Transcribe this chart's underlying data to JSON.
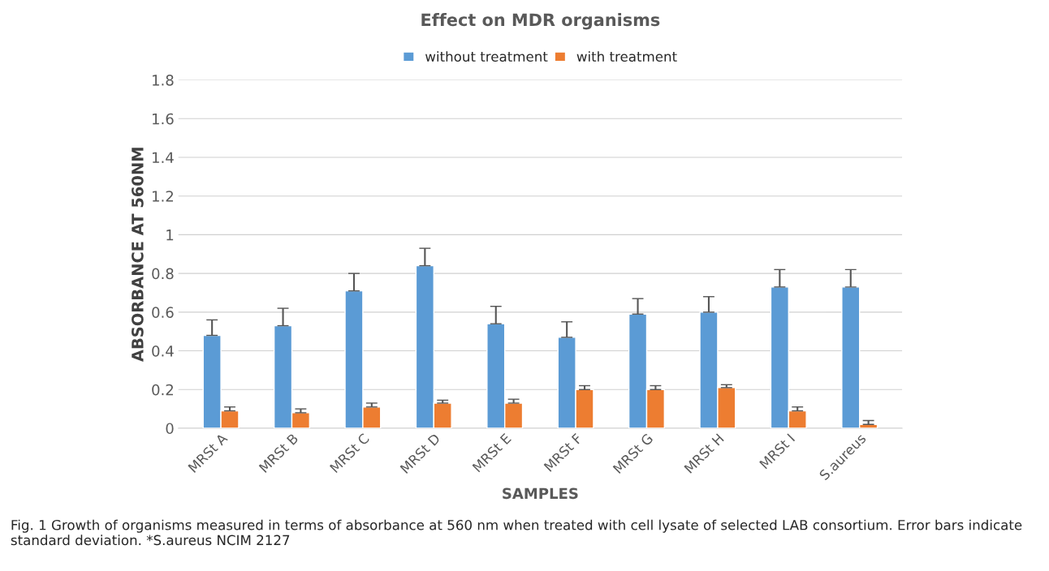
{
  "chart_data": {
    "type": "bar",
    "title": "Effect on MDR organisms",
    "xlabel": "SAMPLES",
    "ylabel": "ABSORBANCE AT 560NM",
    "categories": [
      "MRSt A",
      "MRSt B",
      "MRSt C",
      "MRSt D",
      "MRSt E",
      "MRSt F",
      "MRSt G",
      "MRSt H",
      "MRSt I",
      "S.aureus"
    ],
    "series": [
      {
        "name": "without treatment",
        "color": "#5b9bd5",
        "values": [
          0.48,
          0.53,
          0.71,
          0.84,
          0.54,
          0.47,
          0.59,
          0.6,
          0.73,
          0.73
        ],
        "errors": [
          0.08,
          0.09,
          0.09,
          0.09,
          0.09,
          0.08,
          0.08,
          0.08,
          0.09,
          0.09
        ]
      },
      {
        "name": "with treatment",
        "color": "#ed7d31",
        "values": [
          0.09,
          0.08,
          0.11,
          0.13,
          0.13,
          0.2,
          0.2,
          0.21,
          0.09,
          0.02
        ],
        "errors": [
          0.02,
          0.02,
          0.02,
          0.015,
          0.02,
          0.02,
          0.02,
          0.015,
          0.02,
          0.02
        ]
      }
    ],
    "ylim": [
      0,
      1.8
    ],
    "yticks": [
      0,
      0.2,
      0.4,
      0.6,
      0.8,
      1,
      1.2,
      1.4,
      1.6,
      1.8
    ],
    "grid": "y",
    "legend": "top",
    "annotations": [
      "Fig. 1 Growth of organisms measured in terms of absorbance at 560 nm when treated with cell lysate of selected LAB consortium. Error bars indicate standard deviation. *S.aureus NCIM 2127"
    ]
  }
}
